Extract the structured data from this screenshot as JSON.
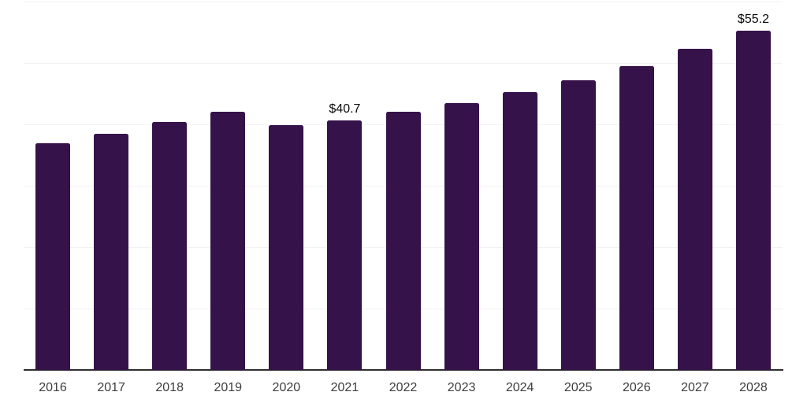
{
  "chart_data": {
    "type": "bar",
    "title": "",
    "xlabel": "",
    "ylabel": "",
    "categories": [
      "2016",
      "2017",
      "2018",
      "2019",
      "2020",
      "2021",
      "2022",
      "2023",
      "2024",
      "2025",
      "2026",
      "2027",
      "2028"
    ],
    "values": [
      36.9,
      38.4,
      40.4,
      42.1,
      39.9,
      40.7,
      42.0,
      43.4,
      45.2,
      47.2,
      49.5,
      52.3,
      55.2
    ],
    "data_labels": [
      "",
      "",
      "",
      "",
      "",
      "$40.7",
      "",
      "",
      "",
      "",
      "",
      "",
      "$55.2"
    ],
    "ylim": [
      0,
      60
    ],
    "grid_step": 10,
    "grid": true,
    "legend": false,
    "colors": {
      "bar": "#351249",
      "gridline": "#f2f2f4",
      "axis_line": "#2f2f2f",
      "tick_label": "#3d3d3d",
      "data_label": "#0a0a0a",
      "background": "#ffffff"
    }
  }
}
